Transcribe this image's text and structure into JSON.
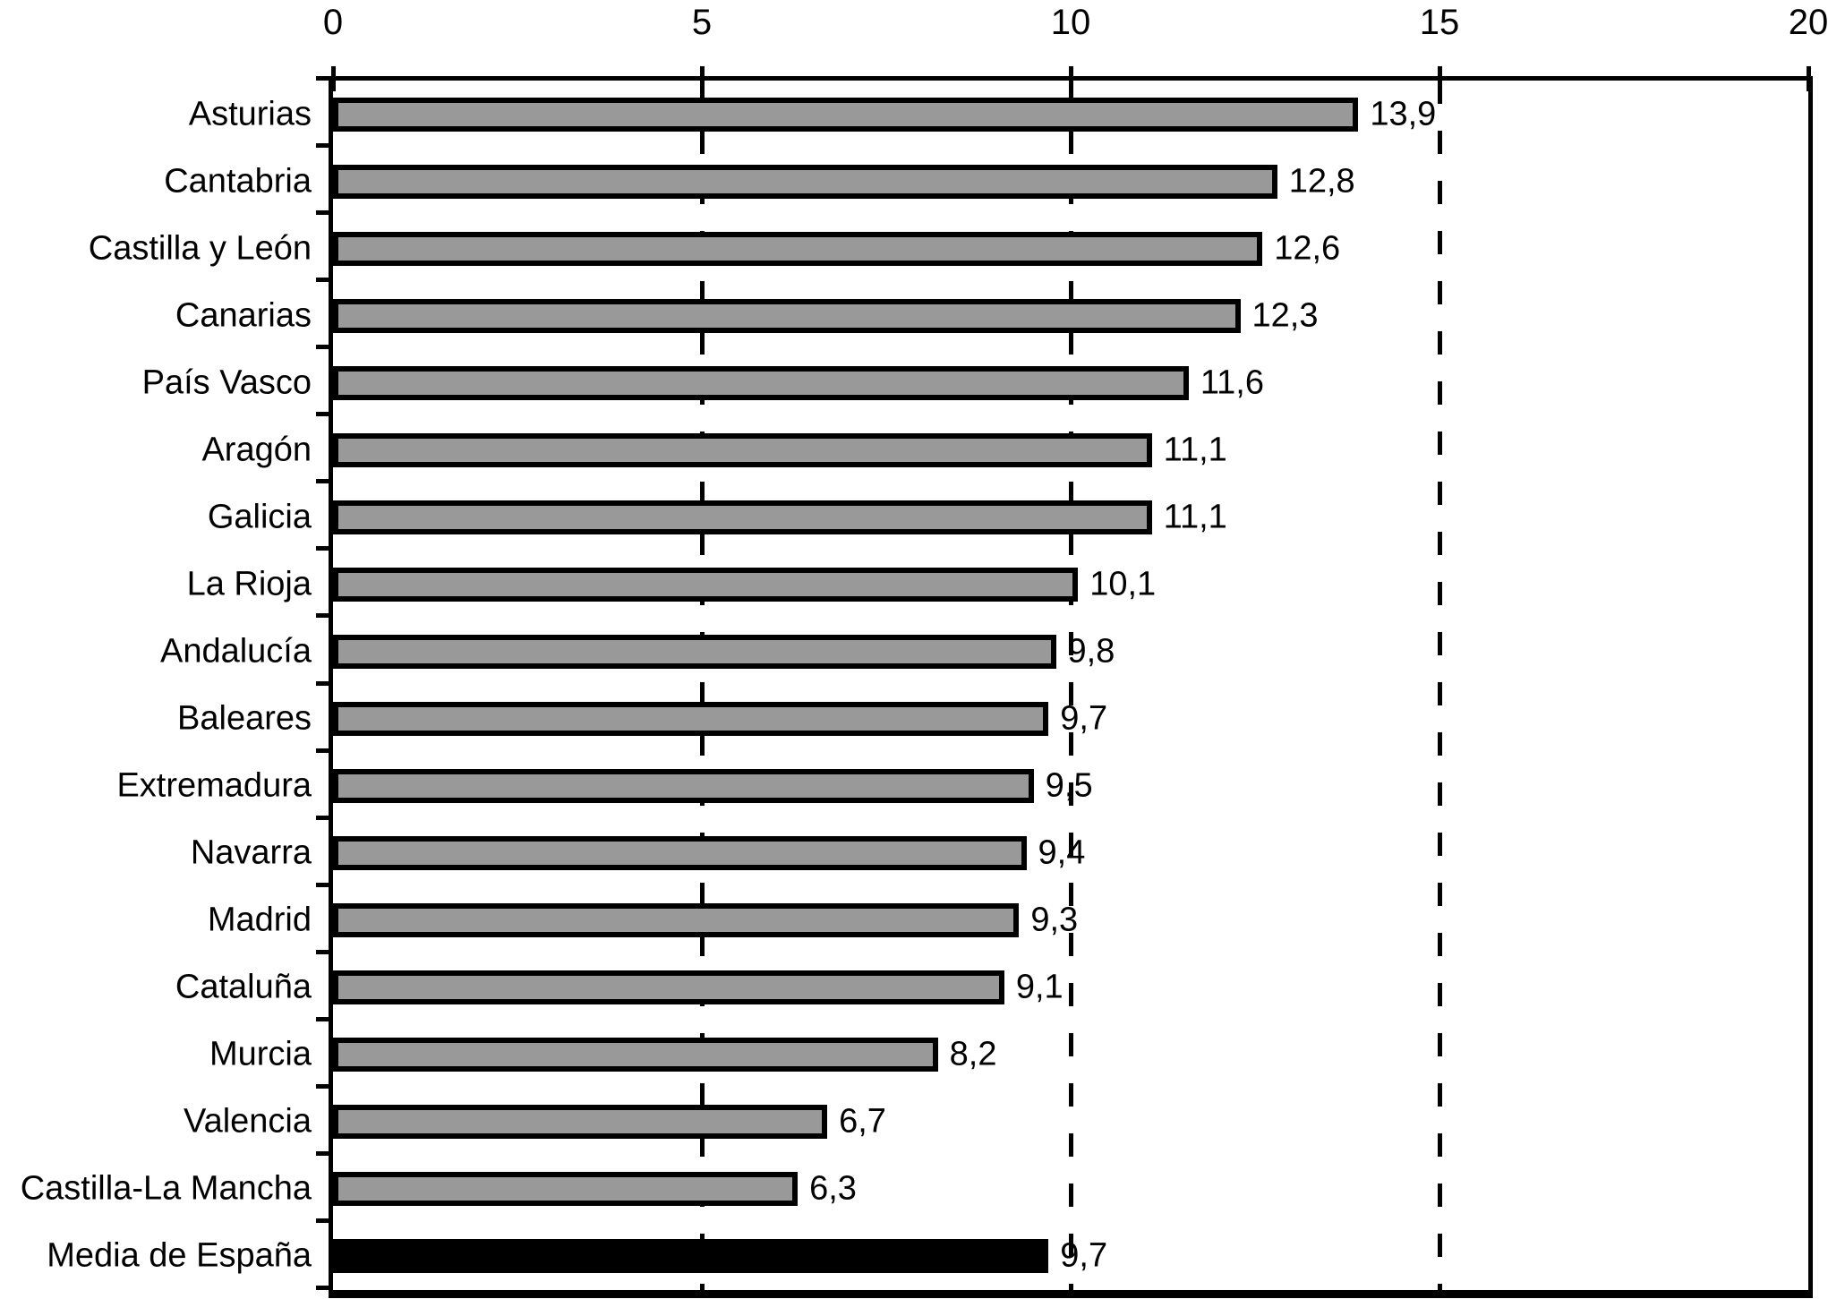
{
  "chart_data": {
    "type": "bar",
    "orientation": "horizontal",
    "title": "",
    "xlabel": "",
    "ylabel": "",
    "categories": [
      "Asturias",
      "Cantabria",
      "Castilla y León",
      "Canarias",
      "País Vasco",
      "Aragón",
      "Galicia",
      "La Rioja",
      "Andalucía",
      "Baleares",
      "Extremadura",
      "Navarra",
      "Madrid",
      "Cataluña",
      "Murcia",
      "Valencia",
      "Castilla-La Mancha",
      "Media de España"
    ],
    "values": [
      13.9,
      12.8,
      12.6,
      12.3,
      11.6,
      11.1,
      11.1,
      10.1,
      9.8,
      9.7,
      9.5,
      9.4,
      9.3,
      9.1,
      8.2,
      6.7,
      6.3,
      9.7
    ],
    "value_labels": [
      "13,9",
      "12,8",
      "12,6",
      "12,3",
      "11,6",
      "11,1",
      "11,1",
      "10,1",
      "9,8",
      "9,7",
      "9,5",
      "9,4",
      "9,3",
      "9,1",
      "8,2",
      "6,7",
      "6,3",
      "9,7"
    ],
    "highlight_category": "Media de España",
    "xlim": [
      0,
      20
    ],
    "x_ticks": [
      0,
      5,
      10,
      15,
      20
    ],
    "x_tick_labels": [
      "0",
      "5",
      "10",
      "15",
      "20"
    ],
    "gridlines_x": [
      5,
      10,
      15
    ],
    "grid_style": "dashed",
    "legend": "none",
    "decimal_separator": ",",
    "colors": {
      "bar_fill": "#999999",
      "bar_border": "#000000",
      "highlight_fill": "#000000",
      "axis": "#000000",
      "background": "#ffffff",
      "text": "#000000"
    }
  }
}
